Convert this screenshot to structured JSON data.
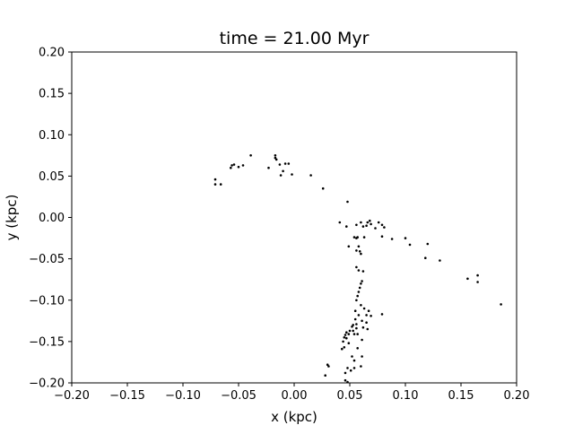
{
  "chart_data": {
    "type": "scatter",
    "title": "time = 21.00 Myr",
    "xlabel": "x (kpc)",
    "ylabel": "y (kpc)",
    "xlim": [
      -0.2,
      0.2
    ],
    "ylim": [
      -0.2,
      0.2
    ],
    "grid": false,
    "xticks": [
      "−0.20",
      "−0.15",
      "−0.10",
      "−0.05",
      "0.00",
      "0.05",
      "0.10",
      "0.15",
      "0.20"
    ],
    "yticks": [
      "−0.20",
      "−0.15",
      "−0.10",
      "−0.05",
      "0.00",
      "0.05",
      "0.10",
      "0.15",
      "0.20"
    ],
    "xtick_values": [
      -0.2,
      -0.15,
      -0.1,
      -0.05,
      0.0,
      0.05,
      0.1,
      0.15,
      0.2
    ],
    "ytick_values": [
      -0.2,
      -0.15,
      -0.1,
      -0.05,
      0.0,
      0.05,
      0.1,
      0.15,
      0.2
    ],
    "marker_color": "#000000",
    "points": [
      [
        -0.039,
        0.075
      ],
      [
        -0.017,
        0.075
      ],
      [
        -0.017,
        0.072
      ],
      [
        -0.016,
        0.07
      ],
      [
        -0.013,
        0.064
      ],
      [
        -0.008,
        0.065
      ],
      [
        -0.005,
        0.065
      ],
      [
        -0.01,
        0.056
      ],
      [
        -0.012,
        0.051
      ],
      [
        -0.002,
        0.052
      ],
      [
        -0.023,
        0.06
      ],
      [
        -0.046,
        0.063
      ],
      [
        -0.05,
        0.061
      ],
      [
        -0.054,
        0.064
      ],
      [
        -0.056,
        0.063
      ],
      [
        -0.057,
        0.06
      ],
      [
        -0.071,
        0.046
      ],
      [
        -0.071,
        0.04
      ],
      [
        -0.066,
        0.04
      ],
      [
        0.015,
        0.051
      ],
      [
        0.026,
        0.035
      ],
      [
        0.048,
        0.019
      ],
      [
        0.041,
        -0.006
      ],
      [
        0.047,
        -0.011
      ],
      [
        0.056,
        -0.009
      ],
      [
        0.06,
        -0.006
      ],
      [
        0.062,
        -0.011
      ],
      [
        0.065,
        -0.01
      ],
      [
        0.066,
        -0.006
      ],
      [
        0.068,
        -0.004
      ],
      [
        0.069,
        -0.008
      ],
      [
        0.073,
        -0.013
      ],
      [
        0.076,
        -0.006
      ],
      [
        0.079,
        -0.009
      ],
      [
        0.081,
        -0.012
      ],
      [
        0.079,
        -0.023
      ],
      [
        0.088,
        -0.026
      ],
      [
        0.1,
        -0.025
      ],
      [
        0.104,
        -0.033
      ],
      [
        0.12,
        -0.032
      ],
      [
        0.118,
        -0.049
      ],
      [
        0.131,
        -0.052
      ],
      [
        0.156,
        -0.074
      ],
      [
        0.165,
        -0.07
      ],
      [
        0.165,
        -0.078
      ],
      [
        0.186,
        -0.105
      ],
      [
        0.054,
        -0.024
      ],
      [
        0.056,
        -0.025
      ],
      [
        0.057,
        -0.024
      ],
      [
        0.063,
        -0.024
      ],
      [
        0.058,
        -0.035
      ],
      [
        0.049,
        -0.035
      ],
      [
        0.056,
        -0.04
      ],
      [
        0.059,
        -0.041
      ],
      [
        0.06,
        -0.044
      ],
      [
        0.056,
        -0.06
      ],
      [
        0.058,
        -0.064
      ],
      [
        0.062,
        -0.065
      ],
      [
        0.061,
        -0.077
      ],
      [
        0.06,
        -0.08
      ],
      [
        0.059,
        -0.085
      ],
      [
        0.058,
        -0.09
      ],
      [
        0.057,
        -0.095
      ],
      [
        0.056,
        -0.1
      ],
      [
        0.06,
        -0.106
      ],
      [
        0.063,
        -0.11
      ],
      [
        0.067,
        -0.113
      ],
      [
        0.055,
        -0.113
      ],
      [
        0.058,
        -0.118
      ],
      [
        0.065,
        -0.118
      ],
      [
        0.069,
        -0.119
      ],
      [
        0.079,
        -0.117
      ],
      [
        0.055,
        -0.123
      ],
      [
        0.061,
        -0.125
      ],
      [
        0.065,
        -0.127
      ],
      [
        0.056,
        -0.129
      ],
      [
        0.053,
        -0.13
      ],
      [
        0.052,
        -0.132
      ],
      [
        0.056,
        -0.134
      ],
      [
        0.062,
        -0.133
      ],
      [
        0.066,
        -0.135
      ],
      [
        0.05,
        -0.137
      ],
      [
        0.053,
        -0.137
      ],
      [
        0.047,
        -0.139
      ],
      [
        0.049,
        -0.141
      ],
      [
        0.046,
        -0.142
      ],
      [
        0.054,
        -0.141
      ],
      [
        0.057,
        -0.141
      ],
      [
        0.045,
        -0.145
      ],
      [
        0.047,
        -0.146
      ],
      [
        0.044,
        -0.15
      ],
      [
        0.049,
        -0.152
      ],
      [
        0.061,
        -0.148
      ],
      [
        0.045,
        -0.157
      ],
      [
        0.043,
        -0.159
      ],
      [
        0.057,
        -0.158
      ],
      [
        0.052,
        -0.168
      ],
      [
        0.061,
        -0.168
      ],
      [
        0.054,
        -0.173
      ],
      [
        0.048,
        -0.182
      ],
      [
        0.051,
        -0.185
      ],
      [
        0.054,
        -0.182
      ],
      [
        0.06,
        -0.18
      ],
      [
        0.046,
        -0.188
      ],
      [
        0.03,
        -0.178
      ],
      [
        0.031,
        -0.18
      ],
      [
        0.028,
        -0.191
      ],
      [
        0.046,
        -0.197
      ],
      [
        0.048,
        -0.199
      ]
    ]
  }
}
